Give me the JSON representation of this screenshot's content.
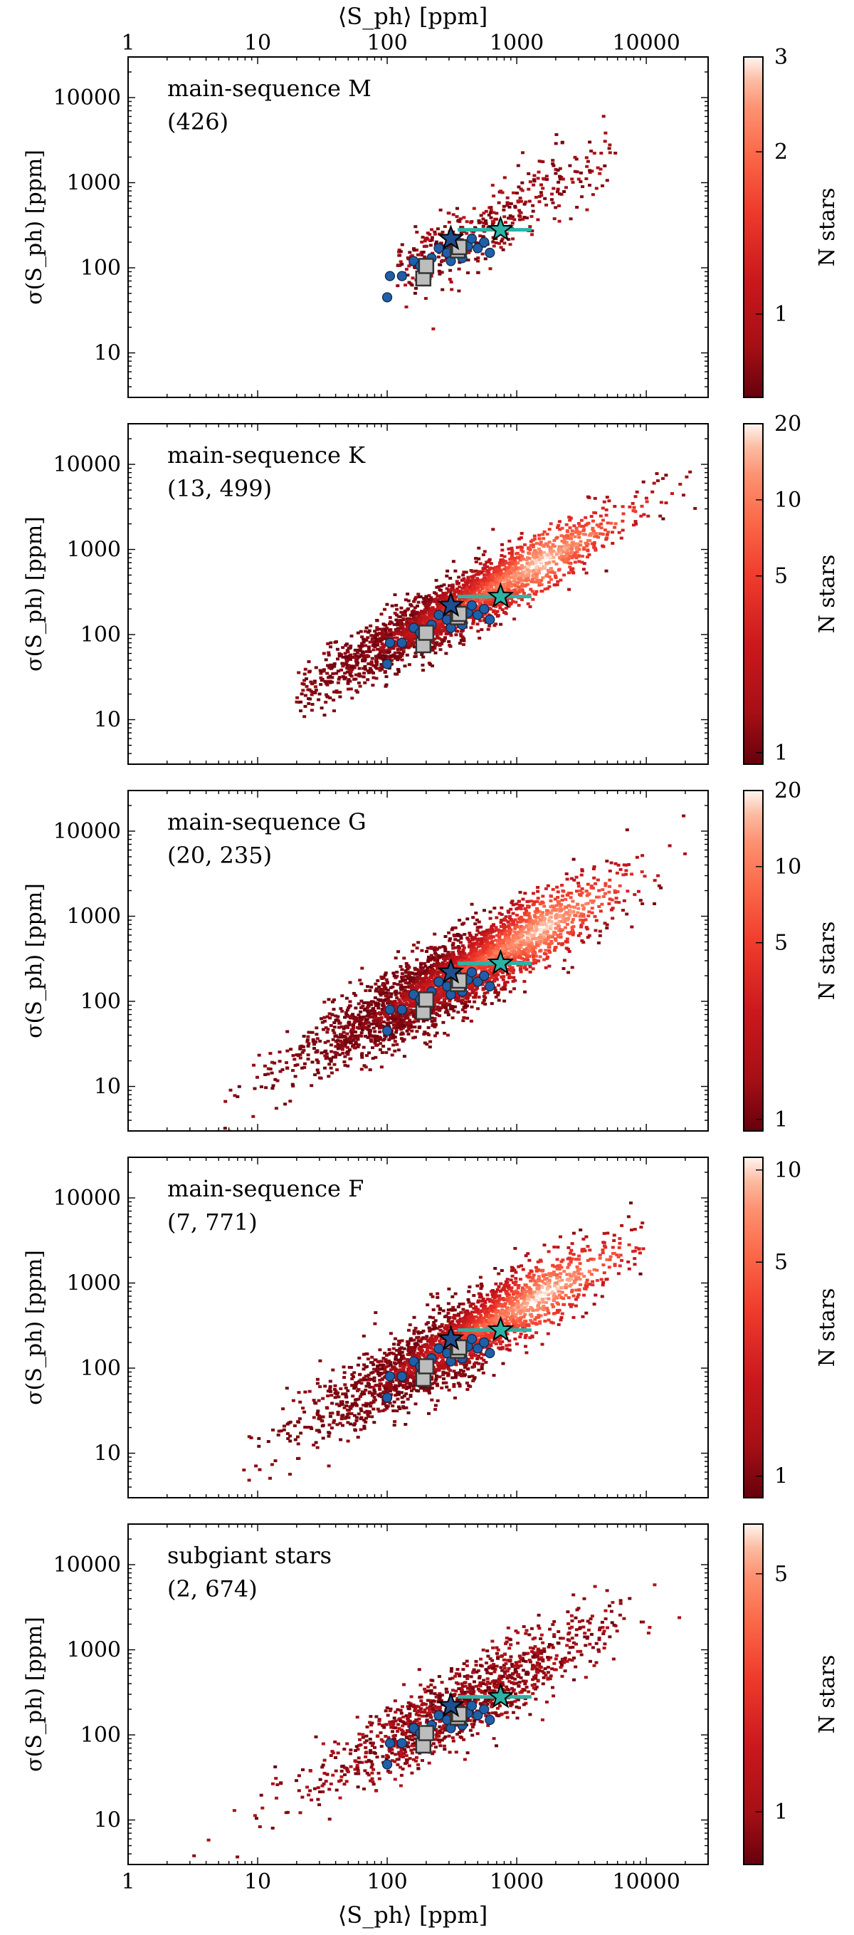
{
  "figure": {
    "top_xlabel": "⟨S_ph⟩ [ppm]",
    "bottom_xlabel": "⟨S_ph⟩ [ppm]",
    "ylabel": "σ(S_ph) [ppm]",
    "colorbar_label": "N stars"
  },
  "chart_data": [
    {
      "type": "heatmap",
      "scale": "log-log",
      "panel_title": "main-sequence M",
      "panel_count": "(426)",
      "xlim": [
        1,
        30000
      ],
      "ylim": [
        3,
        30000
      ],
      "x_ticks": [
        "1",
        "10",
        "100",
        "1000",
        "10000"
      ],
      "y_ticks": [
        "10",
        "100",
        "1000",
        "10000"
      ],
      "colorbar": {
        "range": [
          0.7,
          3
        ],
        "ticks": [
          "1",
          "2",
          "3"
        ]
      },
      "density": {
        "main_range": [
          120,
          6000
        ],
        "slope": 0.82,
        "intercept_y_at_x1000": 500,
        "scatter_spread_dex": 0.22,
        "points": 426,
        "dense_core": false
      },
      "colors": {
        "low": "#67000d",
        "high": "#fff5f0"
      }
    },
    {
      "type": "heatmap",
      "scale": "log-log",
      "panel_title": "main-sequence K",
      "panel_count": "(13, 499)",
      "xlim": [
        1,
        30000
      ],
      "ylim": [
        3,
        30000
      ],
      "x_ticks": [
        "1",
        "10",
        "100",
        "1000",
        "10000"
      ],
      "y_ticks": [
        "10",
        "100",
        "1000",
        "10000"
      ],
      "colorbar": {
        "range": [
          0.9,
          20
        ],
        "ticks": [
          "1",
          "5",
          "10",
          "20"
        ]
      },
      "density": {
        "main_range": [
          20,
          25000
        ],
        "slope": 0.82,
        "intercept_y_at_x1000": 500,
        "scatter_spread_dex": 0.18,
        "points": 2600,
        "dense_core": true
      },
      "colors": {
        "low": "#67000d",
        "high": "#fff5f0"
      }
    },
    {
      "type": "heatmap",
      "scale": "log-log",
      "panel_title": "main-sequence G",
      "panel_count": "(20, 235)",
      "xlim": [
        1,
        30000
      ],
      "ylim": [
        3,
        30000
      ],
      "x_ticks": [
        "1",
        "10",
        "100",
        "1000",
        "10000"
      ],
      "y_ticks": [
        "10",
        "100",
        "1000",
        "10000"
      ],
      "colorbar": {
        "range": [
          0.9,
          20
        ],
        "ticks": [
          "1",
          "5",
          "10",
          "20"
        ]
      },
      "density": {
        "main_range": [
          3,
          20000
        ],
        "slope": 0.82,
        "intercept_y_at_x1000": 500,
        "scatter_spread_dex": 0.22,
        "points": 3200,
        "dense_core": true
      },
      "colors": {
        "low": "#67000d",
        "high": "#fff5f0"
      }
    },
    {
      "type": "heatmap",
      "scale": "log-log",
      "panel_title": "main-sequence F",
      "panel_count": "(7, 771)",
      "xlim": [
        1,
        30000
      ],
      "ylim": [
        3,
        30000
      ],
      "x_ticks": [
        "1",
        "10",
        "100",
        "1000",
        "10000"
      ],
      "y_ticks": [
        "10",
        "100",
        "1000",
        "10000"
      ],
      "colorbar": {
        "range": [
          0.85,
          11
        ],
        "ticks": [
          "1",
          "5",
          "10"
        ]
      },
      "density": {
        "main_range": [
          5,
          10000
        ],
        "slope": 0.82,
        "intercept_y_at_x1000": 500,
        "scatter_spread_dex": 0.22,
        "points": 2400,
        "dense_core": true
      },
      "colors": {
        "low": "#67000d",
        "high": "#fff5f0"
      }
    },
    {
      "type": "heatmap",
      "scale": "log-log",
      "panel_title": "subgiant stars",
      "panel_count": "(2, 674)",
      "xlim": [
        1,
        30000
      ],
      "ylim": [
        3,
        30000
      ],
      "x_ticks": [
        "1",
        "10",
        "100",
        "1000",
        "10000"
      ],
      "y_ticks": [
        "10",
        "100",
        "1000",
        "10000"
      ],
      "colorbar": {
        "range": [
          0.7,
          7
        ],
        "ticks": [
          "1",
          "5"
        ]
      },
      "density": {
        "main_range": [
          2,
          25000
        ],
        "slope": 0.82,
        "intercept_y_at_x1000": 500,
        "scatter_spread_dex": 0.22,
        "points": 1300,
        "dense_core": false
      },
      "colors": {
        "low": "#67000d",
        "high": "#fff5f0"
      }
    }
  ],
  "overlays": {
    "blue_circles": [
      {
        "x": 100,
        "y": 45
      },
      {
        "x": 105,
        "y": 80
      },
      {
        "x": 130,
        "y": 80
      },
      {
        "x": 160,
        "y": 120
      },
      {
        "x": 180,
        "y": 105
      },
      {
        "x": 220,
        "y": 130
      },
      {
        "x": 250,
        "y": 170
      },
      {
        "x": 290,
        "y": 150
      },
      {
        "x": 310,
        "y": 120
      },
      {
        "x": 350,
        "y": 200
      },
      {
        "x": 380,
        "y": 130
      },
      {
        "x": 420,
        "y": 180
      },
      {
        "x": 450,
        "y": 220
      },
      {
        "x": 500,
        "y": 170
      },
      {
        "x": 560,
        "y": 200
      },
      {
        "x": 620,
        "y": 150
      }
    ],
    "gray_squares": [
      {
        "x": 190,
        "y": 75
      },
      {
        "x": 200,
        "y": 105
      },
      {
        "x": 350,
        "y": 160
      },
      {
        "x": 360,
        "y": 175
      }
    ],
    "stars": [
      {
        "x": 310,
        "y": 220,
        "color": "#1f4e8f"
      },
      {
        "x": 750,
        "y": 280,
        "color": "#2bb3a6"
      }
    ],
    "errorbar": {
      "x_from": 350,
      "x_to": 1300,
      "y": 280
    },
    "colors": {
      "circle": "#1f5fa8",
      "square": "#bdbdbd",
      "errorbar": "#2bb3a6"
    }
  }
}
